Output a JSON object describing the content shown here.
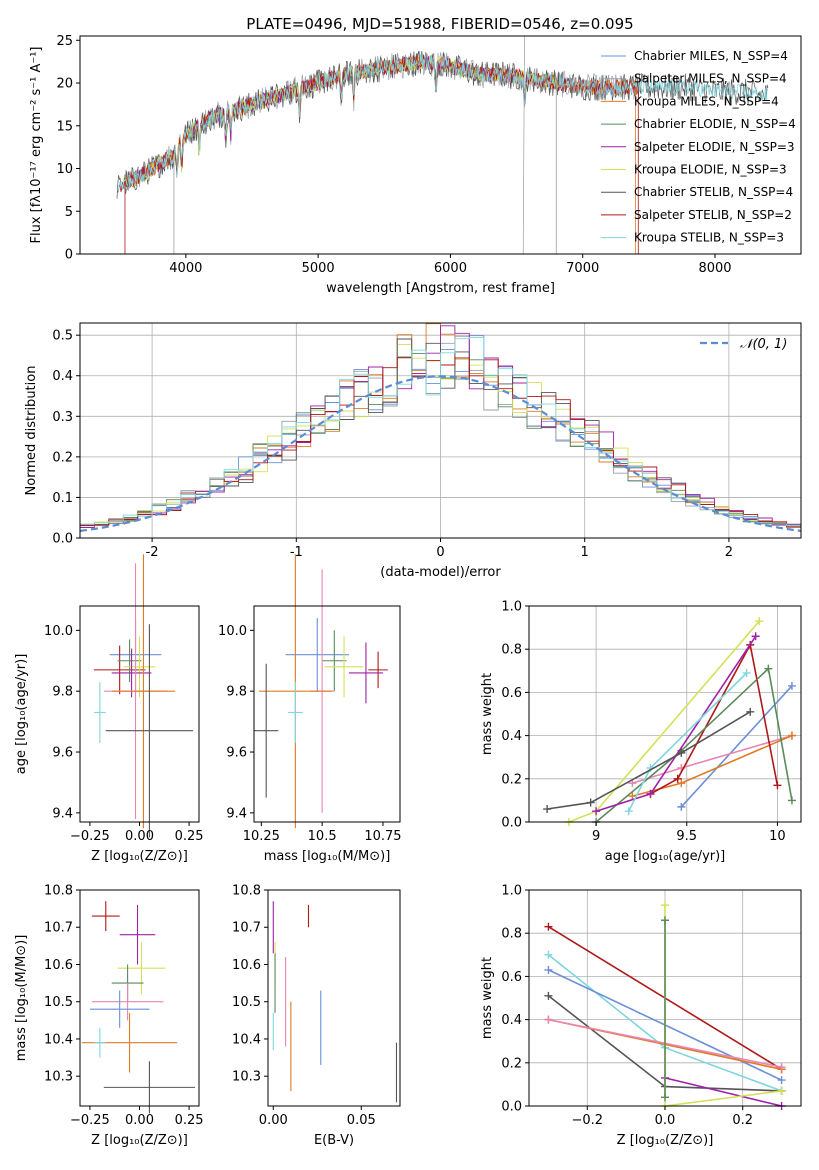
{
  "title": "PLATE=0496, MJD=51988, FIBERID=0546, z=0.095",
  "colors": {
    "Chabrier MILES": "#6b8fd9",
    "Salpeter MILES": "#9aa0a6",
    "Kroupa MILES": "#e07b24",
    "Chabrier ELODIE": "#5a8a5a",
    "Salpeter ELODIE": "#a020a8",
    "Kroupa ELODIE": "#d4e157",
    "Chabrier STELIB": "#555555",
    "Salpeter STELIB": "#b01818",
    "Kroupa STELIB": "#7fd6de",
    "gauss": "#5b8dd6",
    "extra1": "#e985b2",
    "extra2": "#e07b24"
  },
  "chart_data": [
    {
      "type": "line",
      "xlabel": "wavelength [Angstrom, rest frame]",
      "ylabel": "Flux [fλ10⁻¹⁷ erg cm⁻² s⁻¹ A⁻¹]",
      "xlim": [
        3200,
        8650
      ],
      "ylim": [
        0,
        25.5
      ],
      "xticks": [
        4000,
        5000,
        6000,
        7000,
        8000
      ],
      "yticks": [
        0,
        5,
        10,
        15,
        20,
        25
      ],
      "legend_position": "right",
      "legend": [
        "Chabrier MILES, N_SSP=4",
        "Salpeter MILES, N_SSP=4",
        "Kroupa MILES, N_SSP=4",
        "Chabrier ELODIE, N_SSP=4",
        "Salpeter ELODIE, N_SSP=3",
        "Kroupa ELODIE, N_SSP=3",
        "Chabrier STELIB, N_SSP=4",
        "Salpeter STELIB, N_SSP=2",
        "Kroupa STELIB, N_SSP=3"
      ],
      "continuum": {
        "x": [
          3450,
          3700,
          3900,
          4000,
          4200,
          4400,
          4600,
          4800,
          5000,
          5200,
          5400,
          5600,
          5800,
          6000,
          6200,
          6400,
          6600,
          6800,
          7000,
          7200,
          7400,
          7600,
          7800,
          8000,
          8200,
          8400
        ],
        "y": [
          7.5,
          9.5,
          11.5,
          14,
          16,
          17,
          18,
          19,
          20,
          21,
          21.5,
          22,
          22.5,
          22,
          21,
          21,
          20.5,
          20,
          19.5,
          19.5,
          19.5,
          19.5,
          19.5,
          19,
          19,
          18.5
        ]
      }
    },
    {
      "type": "bar",
      "xlabel": "(data-model)/error",
      "ylabel": "Normed distribution",
      "xlim": [
        -2.5,
        2.5
      ],
      "ylim": [
        0,
        0.53
      ],
      "xticks": [
        -2,
        -1,
        0,
        1,
        2
      ],
      "yticks": [
        0.0,
        0.1,
        0.2,
        0.3,
        0.4,
        0.5
      ],
      "legend_position": "top-right",
      "legend": [
        "𝒩(0, 1)"
      ],
      "bin_width": 0.1
    },
    {
      "type": "scatter",
      "xlabel": "Z [log₁₀(Z/Z⊙)]",
      "ylabel": "age  [log₁₀(age/yr)]",
      "xlim": [
        -0.3,
        0.3
      ],
      "ylim": [
        9.37,
        10.08
      ],
      "xticks": [
        -0.25,
        0.0,
        0.25
      ],
      "xtick_labels": [
        "−0.25",
        "0.00",
        "0.25"
      ],
      "yticks": [
        9.4,
        9.6,
        9.8,
        10.0
      ],
      "points": [
        {
          "x": -0.02,
          "y": 9.92,
          "xerr": 0.13,
          "yerr": 0.12,
          "color": "#6b8fd9"
        },
        {
          "x": -0.1,
          "y": 9.87,
          "xerr": 0.13,
          "yerr": 0.08,
          "color": "#b01818"
        },
        {
          "x": -0.05,
          "y": 9.9,
          "xerr": 0.06,
          "yerr": 0.07,
          "color": "#5a8a5a"
        },
        {
          "x": 0.0,
          "y": 9.88,
          "xerr": 0.08,
          "yerr": 0.1,
          "color": "#d4e157"
        },
        {
          "x": -0.04,
          "y": 9.86,
          "xerr": 0.1,
          "yerr": 0.08,
          "color": "#a020a8"
        },
        {
          "x": -0.02,
          "y": 9.8,
          "xerr": 0.16,
          "yerr": 0.42,
          "color": "#e985b2"
        },
        {
          "x": 0.02,
          "y": 9.8,
          "xerr": 0.16,
          "yerr": 0.45,
          "color": "#e07b24"
        },
        {
          "x": -0.2,
          "y": 9.73,
          "xerr": 0.03,
          "yerr": 0.1,
          "color": "#7fd6de"
        },
        {
          "x": 0.05,
          "y": 9.67,
          "xerr": 0.22,
          "yerr": 0.35,
          "color": "#555555"
        }
      ]
    },
    {
      "type": "scatter",
      "xlabel": "mass [log₁₀(M/M⊙)]",
      "ylabel": "",
      "xlim": [
        10.22,
        10.82
      ],
      "ylim": [
        9.37,
        10.08
      ],
      "xticks": [
        10.25,
        10.5,
        10.75
      ],
      "yticks": [
        9.4,
        9.6,
        9.8,
        10.0
      ],
      "points": [
        {
          "x": 10.48,
          "y": 9.92,
          "xerr": 0.13,
          "yerr": 0.12,
          "color": "#6b8fd9"
        },
        {
          "x": 10.73,
          "y": 9.87,
          "xerr": 0.04,
          "yerr": 0.06,
          "color": "#b01818"
        },
        {
          "x": 10.55,
          "y": 9.9,
          "xerr": 0.05,
          "yerr": 0.1,
          "color": "#5a8a5a"
        },
        {
          "x": 10.59,
          "y": 9.88,
          "xerr": 0.08,
          "yerr": 0.1,
          "color": "#d4e157"
        },
        {
          "x": 10.68,
          "y": 9.86,
          "xerr": 0.07,
          "yerr": 0.1,
          "color": "#a020a8"
        },
        {
          "x": 10.5,
          "y": 9.8,
          "xerr": 0.05,
          "yerr": 0.4,
          "color": "#e985b2"
        },
        {
          "x": 10.39,
          "y": 9.8,
          "xerr": 0.15,
          "yerr": 0.45,
          "color": "#e07b24"
        },
        {
          "x": 10.39,
          "y": 9.73,
          "xerr": 0.03,
          "yerr": 0.1,
          "color": "#7fd6de"
        },
        {
          "x": 10.27,
          "y": 9.67,
          "xerr": 0.05,
          "yerr": 0.22,
          "color": "#555555"
        }
      ]
    },
    {
      "type": "line",
      "xlabel": "age  [log₁₀(age/yr)]",
      "ylabel": "mass weight",
      "xlim": [
        8.63,
        10.13
      ],
      "ylim": [
        0.0,
        1.0
      ],
      "xticks": [
        9.0,
        9.5,
        10.0
      ],
      "yticks": [
        0.0,
        0.2,
        0.4,
        0.6,
        0.8,
        1.0
      ],
      "series": [
        {
          "x": [
            9.47,
            10.08
          ],
          "y": [
            0.07,
            0.63
          ],
          "color": "#6b8fd9"
        },
        {
          "x": [
            9.2,
            9.47,
            10.08
          ],
          "y": [
            0.18,
            0.25,
            0.4
          ],
          "color": "#e985b2"
        },
        {
          "x": [
            9.2,
            9.47,
            10.08
          ],
          "y": [
            0.12,
            0.18,
            0.4
          ],
          "color": "#e07b24"
        },
        {
          "x": [
            9.3,
            9.45,
            9.85,
            10.0
          ],
          "y": [
            0.13,
            0.2,
            0.82,
            0.17
          ],
          "color": "#b01818"
        },
        {
          "x": [
            9.0,
            9.47,
            9.95,
            10.08
          ],
          "y": [
            0.0,
            0.33,
            0.71,
            0.1
          ],
          "color": "#5a8a5a"
        },
        {
          "x": [
            8.85,
            9.0,
            9.9
          ],
          "y": [
            0.0,
            0.05,
            0.93
          ],
          "color": "#d4e157"
        },
        {
          "x": [
            9.0,
            9.3,
            9.88
          ],
          "y": [
            0.05,
            0.13,
            0.86
          ],
          "color": "#a020a8"
        },
        {
          "x": [
            9.18,
            9.3,
            9.83
          ],
          "y": [
            0.05,
            0.25,
            0.69
          ],
          "color": "#7fd6de"
        },
        {
          "x": [
            8.73,
            8.97,
            9.47,
            9.85
          ],
          "y": [
            0.06,
            0.09,
            0.32,
            0.51
          ],
          "color": "#555555"
        }
      ]
    },
    {
      "type": "scatter",
      "xlabel": "Z [log₁₀(Z/Z⊙)]",
      "ylabel": "mass [log₁₀(M/M⊙)]",
      "xlim": [
        -0.3,
        0.3
      ],
      "ylim": [
        10.22,
        10.8
      ],
      "xticks": [
        -0.25,
        0.0,
        0.25
      ],
      "xtick_labels": [
        "−0.25",
        "0.00",
        "0.25"
      ],
      "yticks": [
        10.3,
        10.4,
        10.5,
        10.6,
        10.7,
        10.8
      ],
      "points": [
        {
          "x": -0.17,
          "y": 10.73,
          "xerr": 0.07,
          "yerr": 0.04,
          "color": "#b01818"
        },
        {
          "x": -0.01,
          "y": 10.68,
          "xerr": 0.09,
          "yerr": 0.08,
          "color": "#a020a8"
        },
        {
          "x": 0.01,
          "y": 10.59,
          "xerr": 0.12,
          "yerr": 0.07,
          "color": "#d4e157"
        },
        {
          "x": -0.06,
          "y": 10.55,
          "xerr": 0.08,
          "yerr": 0.05,
          "color": "#5a8a5a"
        },
        {
          "x": -0.06,
          "y": 10.5,
          "xerr": 0.18,
          "yerr": 0.05,
          "color": "#e985b2"
        },
        {
          "x": -0.1,
          "y": 10.48,
          "xerr": 0.15,
          "yerr": 0.05,
          "color": "#6b8fd9"
        },
        {
          "x": -0.05,
          "y": 10.39,
          "xerr": 0.24,
          "yerr": 0.08,
          "color": "#e07b24"
        },
        {
          "x": -0.2,
          "y": 10.39,
          "xerr": 0.03,
          "yerr": 0.04,
          "color": "#7fd6de"
        },
        {
          "x": 0.05,
          "y": 10.27,
          "xerr": 0.23,
          "yerr": 0.07,
          "color": "#555555"
        }
      ]
    },
    {
      "type": "scatter",
      "xlabel": "E(B-V)",
      "ylabel": "",
      "xlim": [
        -0.003,
        0.072
      ],
      "ylim": [
        10.22,
        10.8
      ],
      "xticks": [
        0.0,
        0.05
      ],
      "xtick_labels": [
        "0.00",
        "0.05"
      ],
      "yticks": [
        10.3,
        10.4,
        10.5,
        10.6,
        10.7,
        10.8
      ],
      "points": [
        {
          "x": 0.0,
          "y": 10.7,
          "yerr": 0.07,
          "color": "#a020a8"
        },
        {
          "x": 0.02,
          "y": 10.73,
          "yerr": 0.03,
          "color": "#b01818"
        },
        {
          "x": 0.001,
          "y": 10.6,
          "yerr": 0.06,
          "color": "#d4e157"
        },
        {
          "x": 0.001,
          "y": 10.55,
          "yerr": 0.08,
          "color": "#5a8a5a"
        },
        {
          "x": 0.007,
          "y": 10.5,
          "yerr": 0.12,
          "color": "#e985b2"
        },
        {
          "x": 0.01,
          "y": 10.38,
          "yerr": 0.12,
          "color": "#e07b24"
        },
        {
          "x": 0.027,
          "y": 10.43,
          "yerr": 0.1,
          "color": "#6b8fd9"
        },
        {
          "x": 0.0,
          "y": 10.42,
          "yerr": 0.05,
          "color": "#7fd6de"
        },
        {
          "x": 0.07,
          "y": 10.31,
          "yerr": 0.08,
          "color": "#555555"
        }
      ]
    },
    {
      "type": "line",
      "xlabel": "Z [log₁₀(Z/Z⊙)]",
      "ylabel": "mass weight",
      "xlim": [
        -0.35,
        0.35
      ],
      "ylim": [
        0.0,
        1.0
      ],
      "xticks": [
        -0.2,
        0.0,
        0.2
      ],
      "xtick_labels": [
        "−0.2",
        "0.0",
        "0.2"
      ],
      "yticks": [
        0.0,
        0.2,
        0.4,
        0.6,
        0.8,
        1.0
      ],
      "series": [
        {
          "x": [
            -0.3,
            0.3
          ],
          "y": [
            0.83,
            0.17
          ],
          "color": "#b01818"
        },
        {
          "x": [
            -0.3,
            0.0,
            0.3
          ],
          "y": [
            0.7,
            0.27,
            0.07
          ],
          "color": "#7fd6de"
        },
        {
          "x": [
            -0.3,
            0.3
          ],
          "y": [
            0.63,
            0.12
          ],
          "color": "#6b8fd9"
        },
        {
          "x": [
            -0.3,
            0.0,
            0.3
          ],
          "y": [
            0.51,
            0.09,
            0.07
          ],
          "color": "#555555"
        },
        {
          "x": [
            -0.3,
            0.3
          ],
          "y": [
            0.4,
            0.17
          ],
          "color": "#e07b24"
        },
        {
          "x": [
            -0.3,
            0.3
          ],
          "y": [
            0.4,
            0.18
          ],
          "color": "#e985b2"
        },
        {
          "x": [
            0.0,
            0.3
          ],
          "y": [
            0.13,
            0.0
          ],
          "color": "#a020a8"
        },
        {
          "x": [
            0.0,
            0.3
          ],
          "y": [
            0.0,
            0.07
          ],
          "color": "#d4e157"
        },
        {
          "x": [
            0.0,
            0.0
          ],
          "y": [
            0.04,
            0.93
          ],
          "color": "#d4e157"
        },
        {
          "x": [
            0.0,
            0.0
          ],
          "y": [
            0.04,
            0.86
          ],
          "color": "#5a8a5a"
        }
      ]
    }
  ]
}
